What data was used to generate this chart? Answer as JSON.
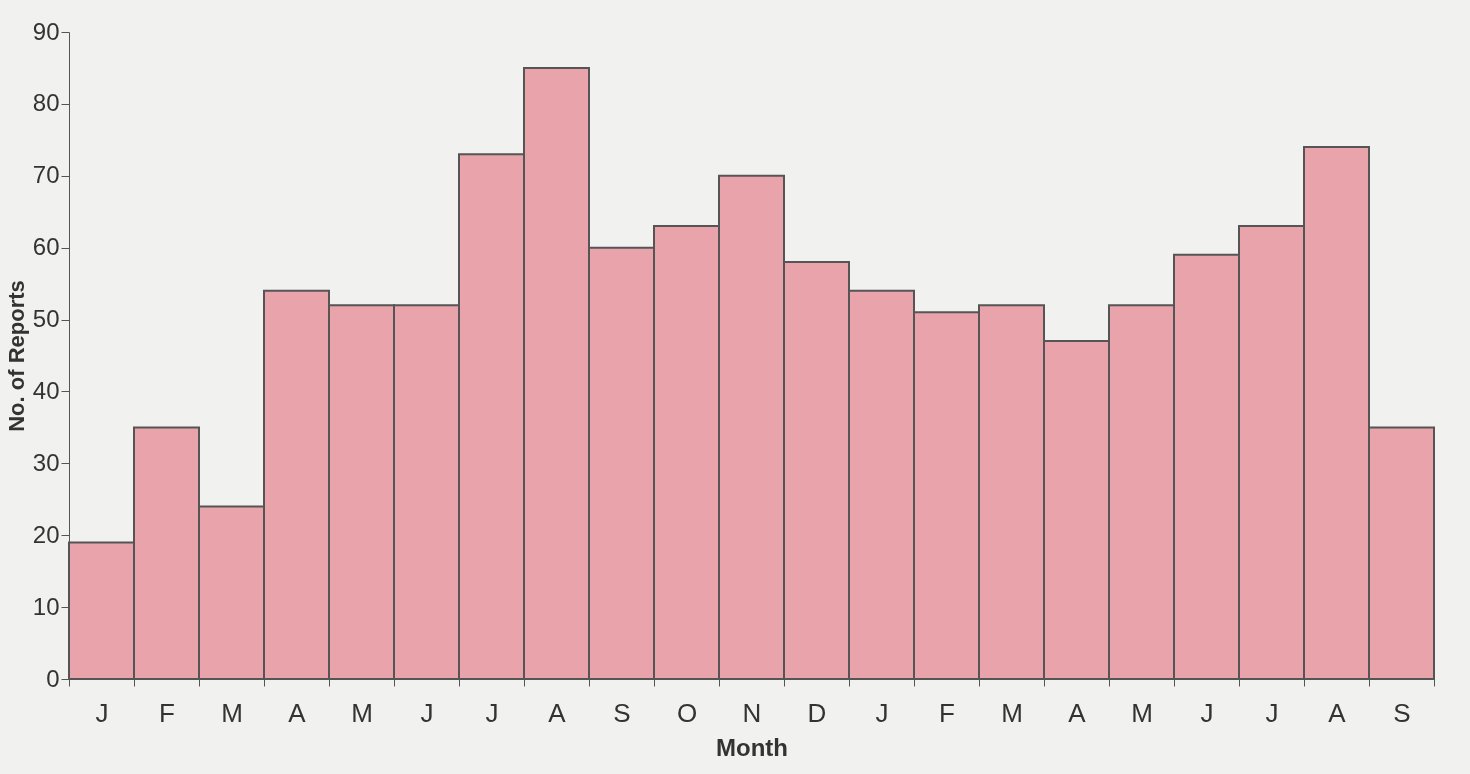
{
  "chart_data": {
    "type": "bar",
    "xlabel": "Month",
    "ylabel": "No. of Reports",
    "categories": [
      "J",
      "F",
      "M",
      "A",
      "M",
      "J",
      "J",
      "A",
      "S",
      "O",
      "N",
      "D",
      "J",
      "F",
      "M",
      "A",
      "M",
      "J",
      "J",
      "A",
      "S"
    ],
    "values": [
      19,
      35,
      24,
      54,
      52,
      52,
      73,
      85,
      60,
      63,
      70,
      58,
      54,
      51,
      52,
      47,
      52,
      59,
      63,
      74,
      35
    ],
    "color": "#e8a3ab",
    "ylim": [
      0,
      90
    ],
    "yticks": [
      0,
      10,
      20,
      30,
      40,
      50,
      60,
      70,
      80,
      90
    ],
    "grid": false
  }
}
